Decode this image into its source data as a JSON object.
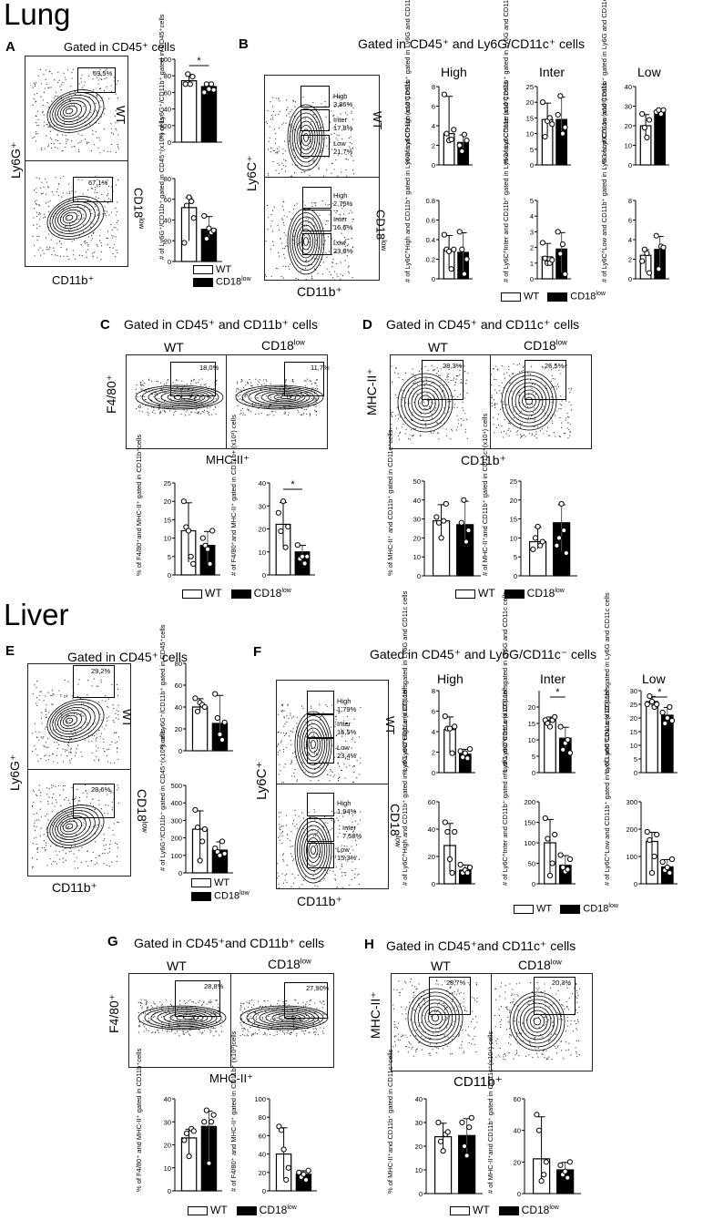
{
  "sections": {
    "lung": "Lung",
    "liver": "Liver"
  },
  "panels": {
    "A": {
      "letter": "A",
      "gate": "Gated in CD45⁺ cells",
      "y": "Ly6G⁺",
      "x": "CD11b⁺",
      "wt": "WT",
      "cd18": "CD18",
      "low": "low",
      "g1": "69,5%",
      "g2": "67,1%"
    },
    "B": {
      "letter": "B",
      "gate": "Gated in CD45⁺ and Ly6G/CD11c⁺ cells",
      "y": "Ly6C⁺",
      "x": "CD11b⁺",
      "wt": "WT",
      "cd18": "CD18",
      "low": "low",
      "wt_gates": [
        [
          "High",
          "3,86%"
        ],
        [
          "Inter",
          "17,8%"
        ],
        [
          "Low",
          "21,7%"
        ]
      ],
      "cd_gates": [
        [
          "High",
          "2,75%"
        ],
        [
          "Inter",
          "16,6%"
        ],
        [
          "Low",
          "23,8%"
        ]
      ],
      "cols": [
        "High",
        "Inter",
        "Low"
      ]
    },
    "C": {
      "letter": "C",
      "gate": "Gated in CD45⁺ and CD11b⁺ cells",
      "y": "F4/80⁺",
      "x": "MHC-II⁺",
      "wt": "WT",
      "cd18": "CD18",
      "low": "low",
      "g1": "18,0%",
      "g2": "11,7%"
    },
    "D": {
      "letter": "D",
      "gate": "Gated in CD45⁺ and CD11c⁺ cells",
      "y": "MHC-II⁺",
      "x": "CD11b⁺",
      "wt": "WT",
      "cd18": "CD18",
      "low": "low",
      "g1": "28,3%",
      "g2": "26,5%"
    },
    "E": {
      "letter": "E",
      "gate": "Gated in CD45⁺ cells",
      "y": "Ly6G⁺",
      "x": "CD11b⁺",
      "wt": "WT",
      "cd18": "CD18",
      "low": "low",
      "g1": "29,2%",
      "g2": "28,6%"
    },
    "F": {
      "letter": "F",
      "gate": "Gated in CD45⁺ and Ly6G/CD11c⁻ cells",
      "y": "Ly6C⁺",
      "x": "CD11b⁺",
      "wt": "WT",
      "cd18": "CD18",
      "low": "low",
      "wt_gates": [
        [
          "High",
          "1,79%"
        ],
        [
          "Inter",
          "16,5%"
        ],
        [
          "Low",
          "23,4%"
        ]
      ],
      "cd_gates": [
        [
          "High",
          "1,94%"
        ],
        [
          "Inter",
          "7,58%"
        ],
        [
          "Low",
          "15,3%"
        ]
      ],
      "cols": [
        "High",
        "Inter",
        "Low"
      ]
    },
    "G": {
      "letter": "G",
      "gate": "Gated in CD45⁺and CD11b⁺ cells",
      "y": "F4/80⁺",
      "x": "MHC-II⁺",
      "wt": "WT",
      "cd18": "CD18",
      "low": "low",
      "g1": "28,8%",
      "g2": "27,90%"
    },
    "H": {
      "letter": "H",
      "gate": "Gated in CD45⁺and CD11c⁺ cells",
      "y": "MHC-II⁺",
      "x": "CD11b⁺",
      "wt": "WT",
      "cd18": "CD18",
      "low": "low",
      "g1": "28,7%",
      "g2": "20,3%"
    }
  },
  "legend": {
    "wt": "WT",
    "cd18": "CD18",
    "low": "low"
  },
  "star": "*",
  "chart_data": [
    {
      "id": "A1",
      "type": "bar",
      "categories": [
        "WT",
        "CD18low"
      ],
      "values": [
        74,
        67
      ],
      "ylim": [
        0,
        100
      ],
      "yticks": [
        0,
        20,
        40,
        60,
        80,
        100
      ],
      "ylabel": "% of Ly6G⁺/CD11b⁺ gated in CD45⁺cells",
      "sig": true,
      "points": [
        [
          70,
          82,
          70,
          79
        ],
        [
          60,
          70,
          64,
          70,
          63
        ]
      ]
    },
    {
      "id": "A2",
      "type": "bar",
      "categories": [
        "WT",
        "CD18low"
      ],
      "values": [
        52,
        31
      ],
      "ylim": [
        0,
        80
      ],
      "yticks": [
        0,
        20,
        40,
        60,
        80
      ],
      "ylabel": "# of Ly6G⁺/CD11b⁺ gated in CD45⁺(x10⁵) cells",
      "sig": false,
      "points": [
        [
          18,
          54,
          62,
          58,
          42
        ],
        [
          44,
          22,
          32,
          28,
          30
        ]
      ]
    },
    {
      "id": "B1",
      "type": "bar",
      "categories": [
        "WT",
        "CD18low"
      ],
      "values": [
        3.2,
        2.3
      ],
      "ylim": [
        0,
        8
      ],
      "yticks": [
        0,
        2,
        4,
        6,
        8
      ],
      "ylabel": "% of Ly6C^High and CD11b⁺ gated in Ly6G and CD11c cells",
      "sig": false,
      "points": [
        [
          7.2,
          3.2,
          2.5,
          2.6,
          3.6
        ],
        [
          2.0,
          1.4,
          3.1,
          2.5
        ]
      ]
    },
    {
      "id": "B2",
      "type": "bar",
      "categories": [
        "WT",
        "CD18low"
      ],
      "values": [
        14.5,
        14.5
      ],
      "ylim": [
        0,
        25
      ],
      "yticks": [
        0,
        5,
        10,
        15,
        20,
        25
      ],
      "ylabel": "% of Ly6C^Inter and CD11b⁺ gated in Ly6G and CD11c cells",
      "sig": false,
      "points": [
        [
          20,
          9,
          14,
          15,
          13
        ],
        [
          16,
          22,
          10,
          12
        ]
      ]
    },
    {
      "id": "B3",
      "type": "bar",
      "categories": [
        "WT",
        "CD18low"
      ],
      "values": [
        20,
        27
      ],
      "ylim": [
        0,
        40
      ],
      "yticks": [
        0,
        10,
        20,
        30,
        40
      ],
      "ylabel": "% of Ly6C^Low and CD11b⁺ gated in Ly6G and CD11c cells",
      "sig": false,
      "points": [
        [
          26,
          19,
          14,
          23
        ],
        [
          27,
          28,
          26,
          28
        ]
      ]
    },
    {
      "id": "B4",
      "type": "bar",
      "categories": [
        "WT",
        "CD18low"
      ],
      "values": [
        0.3,
        0.27
      ],
      "ylim": [
        0,
        0.8
      ],
      "yticks": [
        0,
        0.2,
        0.4,
        0.6,
        0.8
      ],
      "ylabel": "# of Ly6C^High and CD11b⁺ gated in Ly6G and CD11c (x10⁵) cells",
      "sig": false,
      "points": [
        [
          0.45,
          0.3,
          0.28,
          0.1,
          0.3
        ],
        [
          0.48,
          0.3,
          0.05,
          0.2
        ]
      ]
    },
    {
      "id": "B5",
      "type": "bar",
      "categories": [
        "WT",
        "CD18low"
      ],
      "values": [
        1.4,
        1.9
      ],
      "ylim": [
        0,
        5
      ],
      "yticks": [
        0,
        1,
        2,
        3,
        4,
        5
      ],
      "ylabel": "# of Ly6C^Inter and CD11b⁺ gated in Ly6G and CD11c (x10⁵) cells",
      "sig": false,
      "points": [
        [
          2.3,
          1.3,
          1.0,
          1.0,
          1.2
        ],
        [
          3.0,
          1.6,
          2.2,
          0.3
        ]
      ]
    },
    {
      "id": "B6",
      "type": "bar",
      "categories": [
        "WT",
        "CD18low"
      ],
      "values": [
        2.4,
        3.0
      ],
      "ylim": [
        0,
        8
      ],
      "yticks": [
        0,
        2,
        4,
        6,
        8
      ],
      "ylabel": "# of Ly6C^Low and CD11b⁺ gated in Ly6G and CD11c (x10⁵) cells",
      "sig": false,
      "points": [
        [
          1.8,
          3.0,
          2.6,
          0.6
        ],
        [
          4.4,
          1.0,
          3.3,
          3.2
        ]
      ]
    },
    {
      "id": "C1",
      "type": "bar",
      "categories": [
        "WT",
        "CD18low"
      ],
      "values": [
        12,
        8
      ],
      "ylim": [
        0,
        25
      ],
      "yticks": [
        0,
        5,
        10,
        15,
        20,
        25
      ],
      "ylabel": "% of F4/80⁺and MHC-II⁺ gated in CD11b⁺cells",
      "sig": false,
      "points": [
        [
          20,
          13,
          12,
          5,
          3
        ],
        [
          10,
          8,
          7,
          3,
          12
        ]
      ]
    },
    {
      "id": "C2",
      "type": "bar",
      "categories": [
        "WT",
        "CD18low"
      ],
      "values": [
        22,
        10
      ],
      "ylim": [
        0,
        40
      ],
      "yticks": [
        0,
        10,
        20,
        30,
        40
      ],
      "ylabel": "# of F4/80⁺and MHC-II⁺ gated in CD11b+ (x10³) cells",
      "sig": true,
      "points": [
        [
          27,
          19,
          32,
          12,
          21
        ],
        [
          13,
          7,
          8,
          5,
          8
        ]
      ]
    },
    {
      "id": "D1",
      "type": "bar",
      "categories": [
        "WT",
        "CD18low"
      ],
      "values": [
        29,
        27
      ],
      "ylim": [
        0,
        50
      ],
      "yticks": [
        0,
        10,
        20,
        30,
        40,
        50
      ],
      "ylabel": "% of MHC-II⁺ and CD11b⁺ gated in CD11c⁺cells",
      "sig": false,
      "points": [
        [
          31,
          28,
          20,
          29,
          38
        ],
        [
          28,
          40,
          18,
          24
        ]
      ]
    },
    {
      "id": "D2",
      "type": "bar",
      "categories": [
        "WT",
        "CD18low"
      ],
      "values": [
        9,
        14
      ],
      "ylim": [
        0,
        25
      ],
      "yticks": [
        0,
        5,
        10,
        15,
        20,
        25
      ],
      "ylabel": "# of MHC-II⁺and CD11b⁺ gated in CD11c⁺(x10⁴) cells",
      "sig": false,
      "points": [
        [
          7,
          10,
          13,
          8,
          9
        ],
        [
          8,
          10,
          19,
          12,
          6
        ]
      ]
    },
    {
      "id": "E1",
      "type": "bar",
      "categories": [
        "WT",
        "CD18low"
      ],
      "values": [
        40,
        25
      ],
      "ylim": [
        0,
        80
      ],
      "yticks": [
        0,
        20,
        40,
        60,
        80
      ],
      "ylabel": "% of Ly6G⁺/CD11b⁺ gated in CD45⁺cells",
      "sig": false,
      "points": [
        [
          48,
          36,
          44,
          42,
          40
        ],
        [
          52,
          30,
          15,
          10,
          26
        ]
      ]
    },
    {
      "id": "E2",
      "type": "bar",
      "categories": [
        "WT",
        "CD18low"
      ],
      "values": [
        250,
        130
      ],
      "ylim": [
        0,
        500
      ],
      "yticks": [
        0,
        100,
        200,
        300,
        400,
        500
      ],
      "ylabel": "# of Ly6G⁺/CD11b⁺ gated in CD45⁺(x10²) cells",
      "sig": false,
      "points": [
        [
          360,
          260,
          70,
          180,
          250
        ],
        [
          140,
          120,
          100,
          180,
          110
        ]
      ]
    },
    {
      "id": "F1",
      "type": "bar",
      "categories": [
        "WT",
        "CD18low"
      ],
      "values": [
        4.2,
        1.8
      ],
      "ylim": [
        0,
        8
      ],
      "yticks": [
        0,
        2,
        4,
        6,
        8
      ],
      "ylabel": "% of Ly6C^High and CD11b⁺ gated in Ly6G and CD11c cells",
      "sig": false,
      "points": [
        [
          5.5,
          4.3,
          4.3,
          1.9,
          4.5
        ],
        [
          2.1,
          1.5,
          1.9,
          1.4,
          2.3
        ]
      ]
    },
    {
      "id": "F2",
      "type": "bar",
      "categories": [
        "WT",
        "CD18low"
      ],
      "values": [
        16,
        10.5
      ],
      "ylim": [
        0,
        25
      ],
      "yticks": [
        0,
        5,
        10,
        15,
        20
      ],
      "ylabel": "% of Ly6C^Inter and CD11b⁺ gated in Ly6G and CD11c cells",
      "sig": true,
      "points": [
        [
          16,
          15,
          14,
          16,
          17
        ],
        [
          14,
          7,
          9,
          10,
          6
        ]
      ]
    },
    {
      "id": "F3",
      "type": "bar",
      "categories": [
        "WT",
        "CD18low"
      ],
      "values": [
        26,
        21
      ],
      "ylim": [
        0,
        30
      ],
      "yticks": [
        0,
        5,
        10,
        15,
        20,
        25,
        30
      ],
      "ylabel": "% of Ly6C^Low and CD11b⁺ gated in Ly6G and CD11c cells",
      "sig": true,
      "points": [
        [
          25,
          28,
          26,
          24,
          25
        ],
        [
          22,
          18,
          20,
          24,
          19
        ]
      ]
    },
    {
      "id": "F4",
      "type": "bar",
      "categories": [
        "WT",
        "CD18low"
      ],
      "values": [
        28,
        10
      ],
      "ylim": [
        0,
        60
      ],
      "yticks": [
        0,
        20,
        40,
        60
      ],
      "ylabel": "# of Ly6C^High and CD11b⁺ gated in Ly6G and CD11c (x10⁵) cells",
      "sig": false,
      "points": [
        [
          45,
          38,
          18,
          8,
          38
        ],
        [
          14,
          8,
          10,
          8,
          12
        ]
      ]
    },
    {
      "id": "F5",
      "type": "bar",
      "categories": [
        "WT",
        "CD18low"
      ],
      "values": [
        100,
        45
      ],
      "ylim": [
        0,
        200
      ],
      "yticks": [
        0,
        50,
        100,
        150,
        200
      ],
      "ylabel": "# of Ly6C^Inter and CD11b⁺ gated in Ly6G and CD11c (x10⁵) cells",
      "sig": false,
      "points": [
        [
          160,
          110,
          20,
          50,
          120
        ],
        [
          70,
          40,
          30,
          35,
          60
        ]
      ]
    },
    {
      "id": "F6",
      "type": "bar",
      "categories": [
        "WT",
        "CD18low"
      ],
      "values": [
        155,
        62
      ],
      "ylim": [
        0,
        300
      ],
      "yticks": [
        0,
        100,
        200,
        300
      ],
      "ylabel": "# of Ly6C^Low and CD11b⁺ gated in Ly6G and CD11c (x10⁵) cells",
      "sig": false,
      "points": [
        [
          190,
          160,
          40,
          100,
          180
        ],
        [
          80,
          50,
          60,
          40,
          90
        ]
      ]
    },
    {
      "id": "G1",
      "type": "bar",
      "categories": [
        "WT",
        "CD18low"
      ],
      "values": [
        23,
        28
      ],
      "ylim": [
        0,
        40
      ],
      "yticks": [
        0,
        10,
        20,
        30,
        40
      ],
      "ylabel": "% of F4/80⁺ and MHC-II⁺ gated in CD11b⁺cells",
      "sig": false,
      "points": [
        [
          22,
          25,
          15,
          27,
          26
        ],
        [
          30,
          35,
          12,
          30,
          33
        ]
      ]
    },
    {
      "id": "G2",
      "type": "bar",
      "categories": [
        "WT",
        "CD18low"
      ],
      "values": [
        40,
        18
      ],
      "ylim": [
        0,
        100
      ],
      "yticks": [
        0,
        20,
        40,
        60,
        80,
        100
      ],
      "ylabel": "# of F4/80⁺ and MHC-II⁺ gated in CD11b⁺ (x10³)cells",
      "sig": false,
      "points": [
        [
          70,
          66,
          45,
          12,
          25
        ],
        [
          20,
          15,
          18,
          12,
          22
        ]
      ]
    },
    {
      "id": "H1",
      "type": "bar",
      "categories": [
        "WT",
        "CD18low"
      ],
      "values": [
        24,
        24.5
      ],
      "ylim": [
        0,
        40
      ],
      "yticks": [
        0,
        10,
        20,
        30,
        40
      ],
      "ylabel": "% of MHC-II⁺and CD11b⁺ gated in CD11c⁺cells",
      "sig": false,
      "points": [
        [
          30,
          22,
          18,
          25,
          26
        ],
        [
          30,
          20,
          16,
          28,
          32
        ]
      ]
    },
    {
      "id": "H2",
      "type": "bar",
      "categories": [
        "WT",
        "CD18low"
      ],
      "values": [
        22,
        15
      ],
      "ylim": [
        0,
        60
      ],
      "yticks": [
        0,
        20,
        40,
        60
      ],
      "ylabel": "# of MHC-II⁺and CD11b⁺ gated in CD11c⁺(x10⁴) cells",
      "sig": false,
      "points": [
        [
          50,
          40,
          8,
          12,
          20
        ],
        [
          18,
          12,
          14,
          10,
          20
        ]
      ]
    }
  ]
}
